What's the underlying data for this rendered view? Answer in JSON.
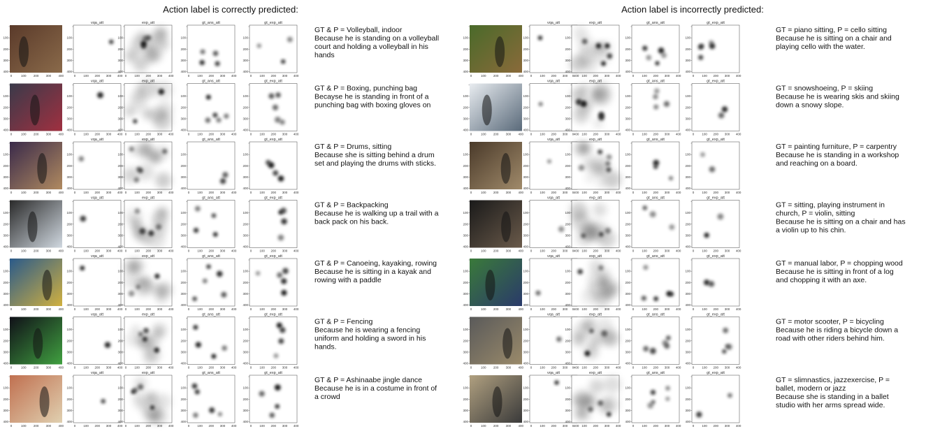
{
  "panel_labels": [
    "vqa_att",
    "exp_att",
    "gt_ans_att",
    "gt_exp_att"
  ],
  "ticks": [
    0,
    100,
    200,
    300,
    400
  ],
  "sections": [
    {
      "title": "Action label is correctly predicted:",
      "rows": [
        {
          "lines": [
            "GT & P = Volleyball, indoor",
            "Because he is standing on a volleyball",
            "court and holding a volleyball in his",
            "hands"
          ]
        },
        {
          "lines": [
            "GT & P = Boxing, punching bag",
            "Becayse he is standing in front of a",
            "punching bag with boxing gloves on"
          ]
        },
        {
          "lines": [
            "GT & P = Drums, sitting",
            "Because she is sitting behind a drum",
            "set and playing the drums with sticks."
          ]
        },
        {
          "lines": [
            "GT & P = Backpacking",
            "Because he is walking up a trail with a",
            "back pack on his back."
          ]
        },
        {
          "lines": [
            "GT & P = Canoeing, kayaking, rowing",
            "Because he is sitting in a kayak and",
            "rowing with a paddle"
          ]
        },
        {
          "lines": [
            "GT & P = Fencing",
            "Because he is wearing a fencing",
            "uniform and holding a sword in his",
            "hands."
          ]
        },
        {
          "lines": [
            "GT & P = Ashinaabe jingle dance",
            "Because he is in a costume in front of",
            "a crowd"
          ]
        }
      ]
    },
    {
      "title": "Action label is incorrectly predicted:",
      "rows": [
        {
          "lines": [
            "GT = piano sitting, P = cello sitting",
            "Because he is sitting on a chair and",
            "playing cello with the water."
          ]
        },
        {
          "lines": [
            "GT = snowshoeing, P = skiing",
            "Because he is wearing skis and skiing",
            "down a snowy slope."
          ]
        },
        {
          "lines": [
            "GT = painting furniture, P = carpentry",
            "Because he is standing in a workshop",
            "and reaching on a board."
          ]
        },
        {
          "lines": [
            "GT = sitting, playing instrument in",
            "church, P = violin, sitting",
            "Because he is sitting on a chair and has",
            "a violin up to his chin."
          ]
        },
        {
          "lines": [
            "GT = manual labor, P = chopping wood",
            "Because he is sitting in front of a log",
            "and chopping it with an axe."
          ]
        },
        {
          "lines": [
            "GT = motor scooter, P = bicycling",
            "Because he is riding a bicycle down a",
            "road with other riders behind him."
          ]
        },
        {
          "lines": [
            "GT = slimnastics, jazzexercise, P =",
            "ballet, modern or jazz",
            "Because she is standing in a ballet",
            "studio with her arms spread wide."
          ]
        }
      ]
    }
  ]
}
